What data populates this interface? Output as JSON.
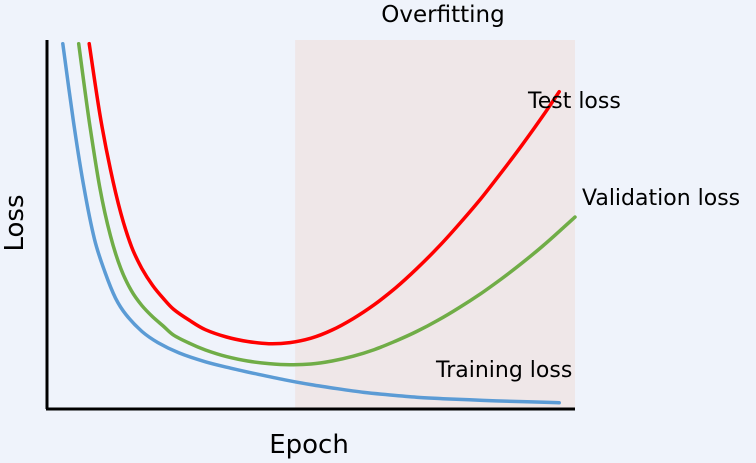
{
  "chart_data": {
    "type": "line",
    "xlabel": "Epoch",
    "ylabel": "Loss",
    "grid": false,
    "legend": "none",
    "region": {
      "label": "Overfitting",
      "x_range": [
        0.47,
        1.0
      ],
      "color": "#efe7e8"
    },
    "series": [
      {
        "name": "Test loss",
        "color": "#ff0000",
        "x": [
          0.08,
          0.1,
          0.12,
          0.14,
          0.16,
          0.18,
          0.2,
          0.22,
          0.24,
          0.27,
          0.3,
          0.34,
          0.38,
          0.42,
          0.46,
          0.5,
          0.54,
          0.58,
          0.62,
          0.66,
          0.7,
          0.74,
          0.78,
          0.82,
          0.86,
          0.9,
          0.94,
          0.97
        ],
        "y": [
          0.99,
          0.8,
          0.65,
          0.53,
          0.44,
          0.38,
          0.335,
          0.3,
          0.27,
          0.24,
          0.215,
          0.195,
          0.183,
          0.177,
          0.18,
          0.192,
          0.214,
          0.245,
          0.283,
          0.328,
          0.38,
          0.437,
          0.5,
          0.567,
          0.64,
          0.716,
          0.796,
          0.86
        ]
      },
      {
        "name": "Validation loss",
        "color": "#70ad47",
        "x": [
          0.06,
          0.08,
          0.1,
          0.12,
          0.14,
          0.16,
          0.18,
          0.2,
          0.22,
          0.24,
          0.27,
          0.3,
          0.34,
          0.38,
          0.42,
          0.46,
          0.5,
          0.54,
          0.58,
          0.62,
          0.66,
          0.7,
          0.74,
          0.78,
          0.82,
          0.86,
          0.9,
          0.94,
          0.98,
          1.0
        ],
        "y": [
          0.99,
          0.78,
          0.6,
          0.47,
          0.38,
          0.32,
          0.28,
          0.25,
          0.225,
          0.2,
          0.178,
          0.16,
          0.142,
          0.13,
          0.123,
          0.12,
          0.122,
          0.13,
          0.143,
          0.161,
          0.184,
          0.21,
          0.24,
          0.274,
          0.311,
          0.352,
          0.396,
          0.443,
          0.494,
          0.52
        ]
      },
      {
        "name": "Training loss",
        "color": "#5b9bd5",
        "x": [
          0.03,
          0.05,
          0.07,
          0.09,
          0.11,
          0.13,
          0.15,
          0.18,
          0.21,
          0.25,
          0.3,
          0.35,
          0.4,
          0.45,
          0.5,
          0.55,
          0.6,
          0.65,
          0.7,
          0.75,
          0.8,
          0.85,
          0.9,
          0.95,
          0.97
        ],
        "y": [
          0.99,
          0.78,
          0.6,
          0.46,
          0.37,
          0.3,
          0.255,
          0.21,
          0.18,
          0.152,
          0.128,
          0.11,
          0.094,
          0.079,
          0.066,
          0.055,
          0.045,
          0.038,
          0.032,
          0.028,
          0.025,
          0.022,
          0.02,
          0.018,
          0.017
        ]
      }
    ]
  }
}
